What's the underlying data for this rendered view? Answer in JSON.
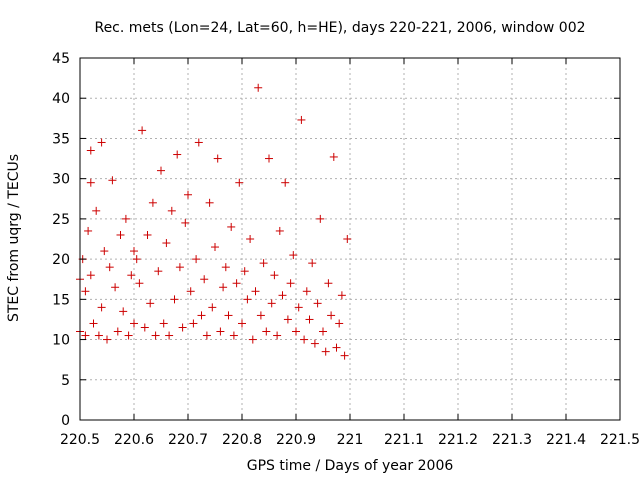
{
  "chart_data": {
    "type": "scatter",
    "title": "Rec. mets (Lon=24, Lat=60, h=HE), days 220-221, 2006, window 002",
    "xlabel": "GPS time / Days of year 2006",
    "ylabel": "STEC from uqrg / TECUs",
    "xlim": [
      220.5,
      221.5
    ],
    "ylim": [
      0,
      45
    ],
    "x_ticks": [
      "220.5",
      "220.6",
      "220.7",
      "220.8",
      "220.9",
      "221",
      "221.1",
      "221.2",
      "221.3",
      "221.4",
      "221.5"
    ],
    "y_ticks": [
      "0",
      "5",
      "10",
      "15",
      "20",
      "25",
      "30",
      "35",
      "40",
      "45"
    ],
    "grid": true,
    "marker": "+",
    "color": "#cc0000",
    "series": [
      {
        "points": [
          [
            220.5,
            11
          ],
          [
            220.5,
            17.5
          ],
          [
            220.505,
            20
          ],
          [
            220.51,
            10.5
          ],
          [
            220.51,
            16
          ],
          [
            220.515,
            23.5
          ],
          [
            220.52,
            29.5
          ],
          [
            220.52,
            33.5
          ],
          [
            220.52,
            18
          ],
          [
            220.525,
            12
          ],
          [
            220.53,
            26
          ],
          [
            220.535,
            10.5
          ],
          [
            220.54,
            34.5
          ],
          [
            220.54,
            14
          ],
          [
            220.545,
            21
          ],
          [
            220.55,
            10
          ],
          [
            220.555,
            19
          ],
          [
            220.56,
            29.8
          ],
          [
            220.565,
            16.5
          ],
          [
            220.57,
            11
          ],
          [
            220.575,
            23
          ],
          [
            220.58,
            13.5
          ],
          [
            220.585,
            25
          ],
          [
            220.59,
            10.5
          ],
          [
            220.595,
            18
          ],
          [
            220.6,
            21
          ],
          [
            220.6,
            12
          ],
          [
            220.605,
            20
          ],
          [
            220.61,
            17
          ],
          [
            220.615,
            36
          ],
          [
            220.62,
            11.5
          ],
          [
            220.625,
            23
          ],
          [
            220.63,
            14.5
          ],
          [
            220.635,
            27
          ],
          [
            220.64,
            10.5
          ],
          [
            220.645,
            18.5
          ],
          [
            220.65,
            31
          ],
          [
            220.655,
            12
          ],
          [
            220.66,
            22
          ],
          [
            220.665,
            10.5
          ],
          [
            220.67,
            26
          ],
          [
            220.675,
            15
          ],
          [
            220.68,
            33
          ],
          [
            220.685,
            19
          ],
          [
            220.69,
            11.5
          ],
          [
            220.695,
            24.5
          ],
          [
            220.7,
            28
          ],
          [
            220.705,
            16
          ],
          [
            220.71,
            12
          ],
          [
            220.715,
            20
          ],
          [
            220.72,
            34.5
          ],
          [
            220.725,
            13
          ],
          [
            220.73,
            17.5
          ],
          [
            220.735,
            10.5
          ],
          [
            220.74,
            27
          ],
          [
            220.745,
            14
          ],
          [
            220.75,
            21.5
          ],
          [
            220.755,
            32.5
          ],
          [
            220.76,
            11
          ],
          [
            220.765,
            16.5
          ],
          [
            220.77,
            19
          ],
          [
            220.775,
            13
          ],
          [
            220.78,
            24
          ],
          [
            220.785,
            10.5
          ],
          [
            220.79,
            17
          ],
          [
            220.795,
            29.5
          ],
          [
            220.8,
            12
          ],
          [
            220.805,
            18.5
          ],
          [
            220.81,
            15
          ],
          [
            220.815,
            22.5
          ],
          [
            220.82,
            10
          ],
          [
            220.825,
            16
          ],
          [
            220.83,
            41.3
          ],
          [
            220.835,
            13
          ],
          [
            220.84,
            19.5
          ],
          [
            220.845,
            11
          ],
          [
            220.85,
            32.5
          ],
          [
            220.855,
            14.5
          ],
          [
            220.86,
            18
          ],
          [
            220.865,
            10.5
          ],
          [
            220.87,
            23.5
          ],
          [
            220.875,
            15.5
          ],
          [
            220.88,
            29.5
          ],
          [
            220.885,
            12.5
          ],
          [
            220.89,
            17
          ],
          [
            220.895,
            20.5
          ],
          [
            220.9,
            11
          ],
          [
            220.905,
            14
          ],
          [
            220.91,
            37.3
          ],
          [
            220.915,
            10
          ],
          [
            220.92,
            16
          ],
          [
            220.925,
            12.5
          ],
          [
            220.93,
            19.5
          ],
          [
            220.935,
            9.5
          ],
          [
            220.94,
            14.5
          ],
          [
            220.945,
            25
          ],
          [
            220.95,
            11
          ],
          [
            220.955,
            8.5
          ],
          [
            220.96,
            17
          ],
          [
            220.965,
            13
          ],
          [
            220.97,
            32.7
          ],
          [
            220.975,
            9
          ],
          [
            220.98,
            12
          ],
          [
            220.985,
            15.5
          ],
          [
            220.99,
            8
          ],
          [
            220.995,
            22.5
          ]
        ]
      }
    ]
  }
}
